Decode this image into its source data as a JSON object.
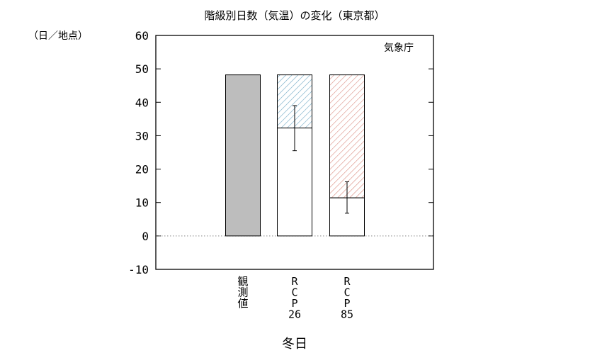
{
  "chart_data": {
    "type": "bar",
    "title": "階級別日数（気温）の変化（東京都）",
    "ylabel": "（日／地点）",
    "xlabel": "冬日",
    "credit": "気象庁",
    "ylim": [
      -10,
      60
    ],
    "yticks": [
      -10,
      0,
      10,
      20,
      30,
      40,
      50,
      60
    ],
    "grid": false,
    "categories": [
      {
        "id": "obs",
        "label_lines": [
          "観",
          "測",
          "値"
        ],
        "mono": false
      },
      {
        "id": "rcp26",
        "label_lines": [
          "R",
          "C",
          "P",
          "26"
        ],
        "mono": true
      },
      {
        "id": "rcp85",
        "label_lines": [
          "R",
          "C",
          "P",
          "85"
        ],
        "mono": true
      }
    ],
    "bars": [
      {
        "category": "obs",
        "value": 48.2,
        "fill": "#bdbdbd"
      },
      {
        "category": "rcp26",
        "value": 32.3,
        "fill": "#ffffff",
        "baseline": 48.2,
        "change_hatch_color": "#6fa8c4",
        "error": [
          25.5,
          39.0
        ]
      },
      {
        "category": "rcp85",
        "value": 11.4,
        "fill": "#ffffff",
        "baseline": 48.2,
        "change_hatch_color": "#d98a7e",
        "error": [
          6.8,
          16.2
        ]
      }
    ],
    "zero_line": "dotted"
  }
}
